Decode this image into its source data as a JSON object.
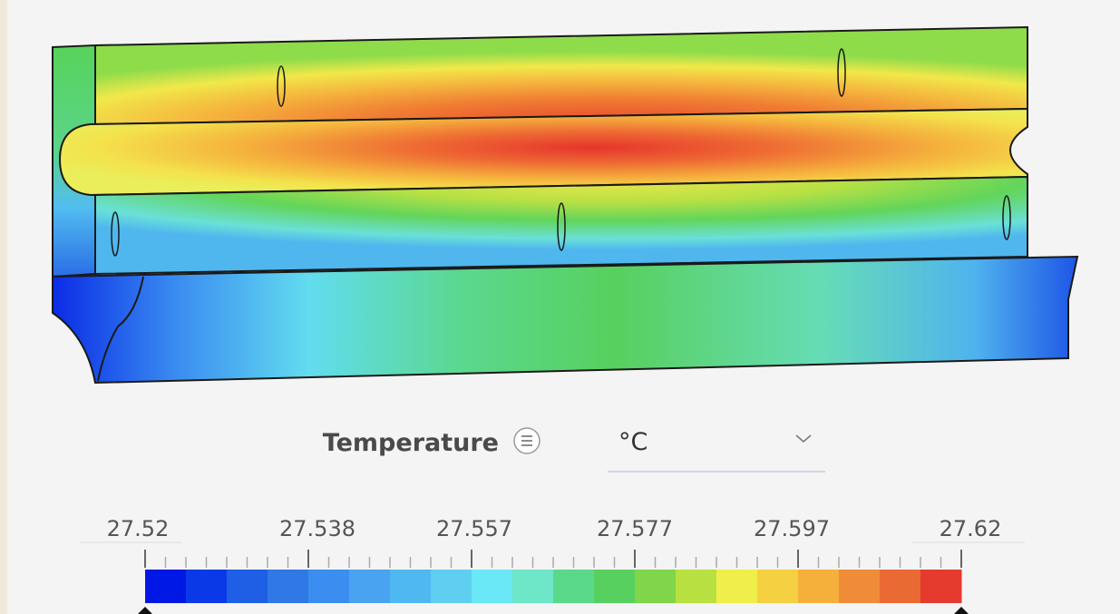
{
  "legend": {
    "title": "Temperature",
    "unit": "°C",
    "ticks": [
      27.52,
      27.538,
      27.557,
      27.577,
      27.597,
      27.62
    ]
  }
}
